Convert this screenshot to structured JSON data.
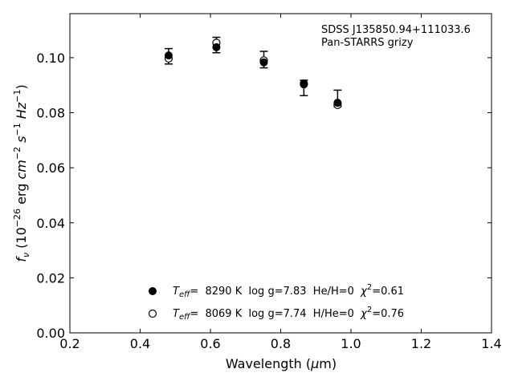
{
  "chart_data": {
    "type": "scatter",
    "title": "",
    "xlabel": "Wavelength (μm)",
    "ylabel": "f_ν (10^-26 erg cm^-2 s^-1 Hz^-1)",
    "xlim": [
      0.2,
      1.4
    ],
    "ylim": [
      0.0,
      0.116
    ],
    "x_ticks": [
      "0.2",
      "0.4",
      "0.6",
      "0.8",
      "1.0",
      "1.2",
      "1.4"
    ],
    "y_ticks": [
      "0.00",
      "0.02",
      "0.04",
      "0.06",
      "0.08",
      "0.10"
    ],
    "grid": false,
    "annotations": [
      "SDSS J135850.94+111033.6",
      "Pan-STARRS grizy"
    ],
    "series": [
      {
        "name": "T_eff= 8290 K log g=7.83 He/H=0 χ²=0.61",
        "marker": "filled-circle",
        "x": [
          0.481,
          0.617,
          0.752,
          0.866,
          0.962
        ],
        "y": [
          0.1008,
          0.1038,
          0.0983,
          0.0903,
          0.0836
        ]
      },
      {
        "name": "T_eff= 8069 K log g=7.74 H/He=0 χ²=0.76",
        "marker": "open-circle",
        "x": [
          0.481,
          0.617,
          0.752,
          0.866,
          0.962
        ],
        "y": [
          0.0997,
          0.1054,
          0.099,
          0.0906,
          0.0828
        ]
      },
      {
        "name": "",
        "type": "errorbar",
        "x": [
          0.481,
          0.617,
          0.752,
          0.866,
          0.962
        ],
        "y": [
          0.1005,
          0.1046,
          0.0993,
          0.089,
          0.0852
        ],
        "yerr": [
          0.0028,
          0.0028,
          0.003,
          0.0028,
          0.003
        ]
      }
    ]
  },
  "legend": {
    "entry1": {
      "teff_label": "T",
      "teff_sub": "eff",
      "text": "=  8290 K  log g=7.83  He/H=0  ",
      "chi": "χ",
      "chi_sup": "2",
      "chi_val": "=0.61"
    },
    "entry2": {
      "teff_label": "T",
      "teff_sub": "eff",
      "text": "=  8069 K  log g=7.74  H/He=0  ",
      "chi": "χ",
      "chi_sup": "2",
      "chi_val": "=0.76"
    }
  },
  "axis_labels": {
    "x_text": "Wavelength (",
    "x_mu": "μ",
    "x_unit": "m)",
    "y_f": "f",
    "y_nu": "ν",
    "y_open": " (10",
    "y_exp1": "−26",
    "y_erg": " erg ",
    "y_cm": "cm",
    "y_exp2": "−2",
    "y_s": " s",
    "y_exp3": "−1",
    "y_hz": " Hz",
    "y_exp4": "−1",
    "y_close": ")"
  }
}
